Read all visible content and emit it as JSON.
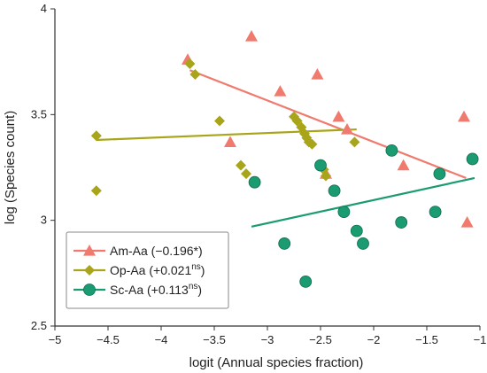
{
  "chart_data": {
    "type": "scatter",
    "xlabel": "logit (Annual species fraction)",
    "ylabel": "log (Species count)",
    "xlim": [
      -5,
      -1
    ],
    "ylim": [
      2.5,
      4
    ],
    "xticks": [
      "-5",
      "-4.5",
      "-4",
      "-3.5",
      "-3",
      "-2.5",
      "-2",
      "-1.5",
      "-1"
    ],
    "yticks": [
      "2.5",
      "3",
      "3.5",
      "4"
    ],
    "grid": false,
    "legend_position": "bottom-left",
    "series": [
      {
        "name": "Am-Aa",
        "legend_prefix": "Am-Aa (",
        "legend_coef": "−0.196*",
        "legend_sup": "",
        "legend_suffix": ")",
        "marker": "triangle",
        "color": "#f07a6e",
        "points": [
          [
            -3.75,
            3.76
          ],
          [
            -3.15,
            3.87
          ],
          [
            -2.88,
            3.61
          ],
          [
            -2.53,
            3.69
          ],
          [
            -2.33,
            3.49
          ],
          [
            -2.25,
            3.43
          ],
          [
            -2.45,
            3.22
          ],
          [
            -3.35,
            3.37
          ],
          [
            -1.72,
            3.26
          ],
          [
            -1.15,
            3.49
          ],
          [
            -1.12,
            2.99
          ]
        ],
        "fit": [
          [
            -3.73,
            3.71
          ],
          [
            -1.13,
            3.2
          ]
        ]
      },
      {
        "name": "Op-Aa",
        "legend_prefix": "Op-Aa (+0.021",
        "legend_coef": "",
        "legend_sup": "ns",
        "legend_suffix": ")",
        "marker": "diamond",
        "color": "#a8a51a",
        "points": [
          [
            -4.61,
            3.4
          ],
          [
            -4.61,
            3.14
          ],
          [
            -3.73,
            3.74
          ],
          [
            -3.68,
            3.69
          ],
          [
            -3.45,
            3.47
          ],
          [
            -3.25,
            3.26
          ],
          [
            -3.2,
            3.22
          ],
          [
            -2.75,
            3.49
          ],
          [
            -2.72,
            3.47
          ],
          [
            -2.68,
            3.44
          ],
          [
            -2.65,
            3.41
          ],
          [
            -2.63,
            3.39
          ],
          [
            -2.61,
            3.37
          ],
          [
            -2.58,
            3.36
          ],
          [
            -2.47,
            3.24
          ],
          [
            -2.45,
            3.21
          ],
          [
            -2.18,
            3.37
          ]
        ],
        "fit": [
          [
            -4.61,
            3.38
          ],
          [
            -2.16,
            3.43
          ]
        ]
      },
      {
        "name": "Sc-Aa",
        "legend_prefix": "Sc-Aa (+0.113",
        "legend_coef": "",
        "legend_sup": "ns",
        "legend_suffix": ")",
        "marker": "circle",
        "color": "#1a9b72",
        "points": [
          [
            -3.12,
            3.18
          ],
          [
            -2.84,
            2.89
          ],
          [
            -2.64,
            2.71
          ],
          [
            -2.5,
            3.26
          ],
          [
            -2.37,
            3.14
          ],
          [
            -2.28,
            3.04
          ],
          [
            -2.16,
            2.95
          ],
          [
            -2.1,
            2.89
          ],
          [
            -1.83,
            3.33
          ],
          [
            -1.74,
            2.99
          ],
          [
            -1.42,
            3.04
          ],
          [
            -1.38,
            3.22
          ],
          [
            -1.07,
            3.29
          ]
        ],
        "fit": [
          [
            -3.15,
            2.97
          ],
          [
            -1.05,
            3.2
          ]
        ]
      }
    ]
  }
}
